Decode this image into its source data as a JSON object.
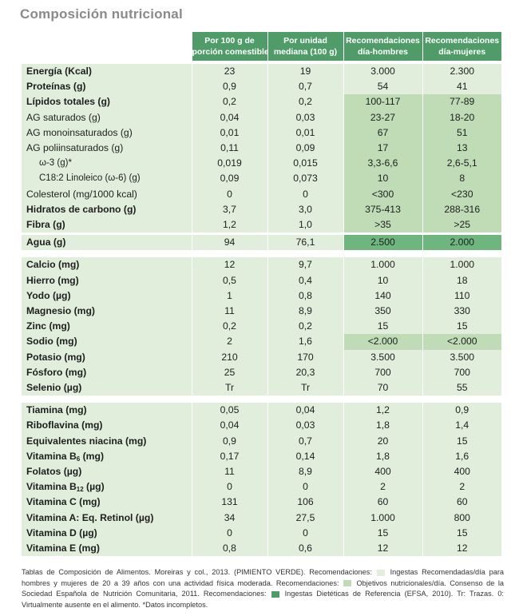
{
  "title": "Composición nutricional",
  "headers": [
    [
      "Por 100 g de",
      "porción comestible"
    ],
    [
      "Por unidad",
      "mediana (100 g)"
    ],
    [
      "Recomendaciones",
      "día-hombres"
    ],
    [
      "Recomendaciones",
      "día-mujeres"
    ]
  ],
  "groups": [
    {
      "rows": [
        {
          "name": "Energía (Kcal)",
          "v": [
            "23",
            "19",
            "3.000",
            "2.300"
          ]
        },
        {
          "name": "Proteínas (g)",
          "v": [
            "0,9",
            "0,7",
            "54",
            "41"
          ]
        },
        {
          "name": "Lípidos totales (g)",
          "v": [
            "0,2",
            "0,2",
            "100-117",
            "77-89"
          ]
        },
        {
          "name": "AG saturados (g)",
          "v": [
            "0,04",
            "0,03",
            "23-27",
            "18-20"
          ]
        },
        {
          "name": "AG monoinsaturados (g)",
          "v": [
            "0,01",
            "0,01",
            "67",
            "51"
          ]
        },
        {
          "name": "AG poliinsaturados (g)",
          "v": [
            "0,11",
            "0,09",
            "17",
            "13"
          ]
        },
        {
          "name": "ω-3 (g)*",
          "v": [
            "0,019",
            "0,015",
            "3,3-6,6",
            "2,6-5,1"
          ]
        },
        {
          "name": "C18:2 Linoleico (ω-6) (g)",
          "v": [
            "0,09",
            "0,073",
            "10",
            "8"
          ]
        },
        {
          "name": "Colesterol (mg/1000 kcal)",
          "v": [
            "0",
            "0",
            "<300",
            "<230"
          ]
        },
        {
          "name": "Hidratos de carbono (g)",
          "v": [
            "3,7",
            "3,0",
            "375-413",
            "288-316"
          ]
        },
        {
          "name": "Fibra (g)",
          "v": [
            "1,2",
            "1,0",
            ">35",
            ">25"
          ]
        },
        {
          "name": "Agua (g)",
          "v": [
            "94",
            "76,1",
            "2.500",
            "2.000"
          ]
        }
      ]
    },
    {
      "rows": [
        {
          "name": "Calcio (mg)",
          "v": [
            "12",
            "9,7",
            "1.000",
            "1.000"
          ]
        },
        {
          "name": "Hierro (mg)",
          "v": [
            "0,5",
            "0,4",
            "10",
            "18"
          ]
        },
        {
          "name": "Yodo (µg)",
          "v": [
            "1",
            "0,8",
            "140",
            "110"
          ]
        },
        {
          "name": "Magnesio (mg)",
          "v": [
            "11",
            "8,9",
            "350",
            "330"
          ]
        },
        {
          "name": "Zinc (mg)",
          "v": [
            "0,2",
            "0,2",
            "15",
            "15"
          ]
        },
        {
          "name": "Sodio (mg)",
          "v": [
            "2",
            "1,6",
            "<2.000",
            "<2.000"
          ]
        },
        {
          "name": "Potasio (mg)",
          "v": [
            "210",
            "170",
            "3.500",
            "3.500"
          ]
        },
        {
          "name": "Fósforo (mg)",
          "v": [
            "25",
            "20,3",
            "700",
            "700"
          ]
        },
        {
          "name": "Selenio (µg)",
          "v": [
            "Tr",
            "Tr",
            "70",
            "55"
          ]
        }
      ]
    },
    {
      "rows": [
        {
          "name": "Tiamina (mg)",
          "v": [
            "0,05",
            "0,04",
            "1,2",
            "0,9"
          ]
        },
        {
          "name": "Riboflavina (mg)",
          "v": [
            "0,04",
            "0,03",
            "1,8",
            "1,4"
          ]
        },
        {
          "name": "Equivalentes niacina (mg)",
          "v": [
            "0,9",
            "0,7",
            "20",
            "15"
          ]
        },
        {
          "name": "Vitamina B",
          "sub": "6",
          "after": " (mg)",
          "v": [
            "0,17",
            "0,14",
            "1,8",
            "1,6"
          ]
        },
        {
          "name": "Folatos (µg)",
          "v": [
            "11",
            "8,9",
            "400",
            "400"
          ]
        },
        {
          "name": "Vitamina B",
          "sub": "12",
          "after": " (µg)",
          "v": [
            "0",
            "0",
            "2",
            "2"
          ]
        },
        {
          "name": "Vitamina C (mg)",
          "v": [
            "131",
            "106",
            "60",
            "60"
          ]
        },
        {
          "name": "Vitamina A: Eq. Retinol (µg)",
          "v": [
            "34",
            "27,5",
            "1.000",
            "800"
          ]
        },
        {
          "name": "Vitamina D (µg)",
          "v": [
            "0",
            "0",
            "15",
            "15"
          ]
        },
        {
          "name": "Vitamina E (mg)",
          "v": [
            "0,8",
            "0,6",
            "12",
            "12"
          ]
        }
      ]
    }
  ],
  "footnote": {
    "part1": "Tablas de Composición de Alimentos. Moreiras y col., 2013. (PIMIENTO VERDE). Recomendaciones:",
    "part2": "Ingestas Recomendadas/día para hombres y mujeres de 20 a 39 años con una actividad física moderada. Recomendaciones:",
    "part3": "Objetivos nutricionales/día. Consenso de la Sociedad Española de Nutrición Comunitaria, 2011. Recomendaciones:",
    "part4": "Ingestas Dietéticas de Referencia (EFSA, 2010). Tr: Trazas. 0: Virtualmente ausente en el alimento. *Datos incompletos."
  },
  "colors": {
    "header": "#4f9c68",
    "light": "#e1eedc",
    "objetivos": "#bfdcb6",
    "efsa": "#6fb57e",
    "title": "#8a8a8a"
  }
}
